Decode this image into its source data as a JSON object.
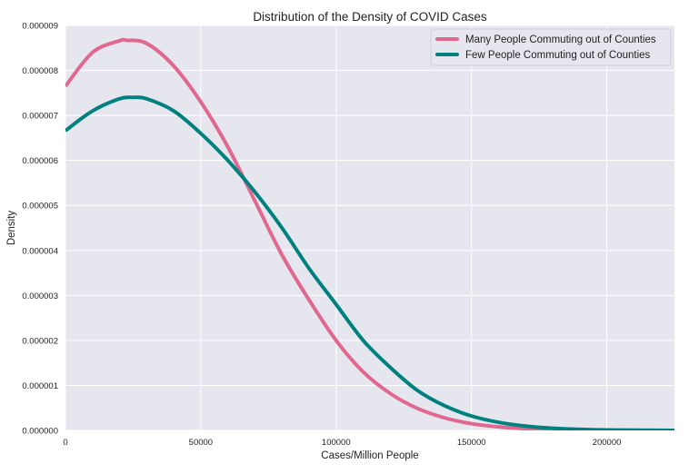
{
  "chart_data": {
    "type": "line",
    "title": "Distribution of the Density of COVID Cases",
    "xlabel": "Cases/Million People",
    "ylabel": "Density",
    "xlim": [
      0,
      225000
    ],
    "ylim": [
      0,
      9e-06
    ],
    "xticks": [
      0,
      50000,
      100000,
      150000,
      200000
    ],
    "xtick_labels": [
      "0",
      "50000",
      "100000",
      "150000",
      "200000"
    ],
    "yticks": [
      0,
      1e-06,
      2e-06,
      3e-06,
      4e-06,
      5e-06,
      6e-06,
      7e-06,
      8e-06,
      9e-06
    ],
    "ytick_labels": [
      "0.000000",
      "0.000001",
      "0.000002",
      "0.000003",
      "0.000004",
      "0.000005",
      "0.000006",
      "0.000007",
      "0.000008",
      "0.000009"
    ],
    "grid": true,
    "legend_position": "top-right",
    "series": [
      {
        "name": "Many People Commuting out of Counties",
        "color": "#e0688f",
        "x": [
          0,
          10000,
          20000,
          22500,
          30000,
          40000,
          50000,
          60000,
          70000,
          80000,
          90000,
          100000,
          110000,
          120000,
          130000,
          140000,
          150000,
          160000,
          170000,
          180000,
          190000,
          200000,
          210000,
          225000
        ],
        "y": [
          7.65e-06,
          8.4e-06,
          8.66e-06,
          8.67e-06,
          8.6e-06,
          8.1e-06,
          7.3e-06,
          6.3e-06,
          5.1e-06,
          3.9e-06,
          2.9e-06,
          2e-06,
          1.3e-06,
          8.2e-07,
          4.9e-07,
          2.8e-07,
          1.5e-07,
          7.8e-08,
          3.8e-08,
          1.8e-08,
          8e-09,
          3.5e-09,
          1.5e-09,
          4e-10
        ]
      },
      {
        "name": "Few People Commuting out of Counties",
        "color": "#00807f",
        "x": [
          0,
          10000,
          20000,
          25000,
          30000,
          40000,
          50000,
          60000,
          70000,
          80000,
          90000,
          100000,
          110000,
          120000,
          130000,
          140000,
          150000,
          160000,
          170000,
          180000,
          190000,
          200000,
          210000,
          225000
        ],
        "y": [
          6.66e-06,
          7.1e-06,
          7.37e-06,
          7.4e-06,
          7.37e-06,
          7.1e-06,
          6.6e-06,
          6e-06,
          5.3e-06,
          4.5e-06,
          3.6e-06,
          2.8e-06,
          2e-06,
          1.4e-06,
          8.9e-07,
          5.5e-07,
          3.2e-07,
          1.8e-07,
          9.5e-08,
          4.8e-08,
          2.3e-08,
          1e-08,
          4.5e-09,
          1.2e-09
        ]
      }
    ]
  }
}
